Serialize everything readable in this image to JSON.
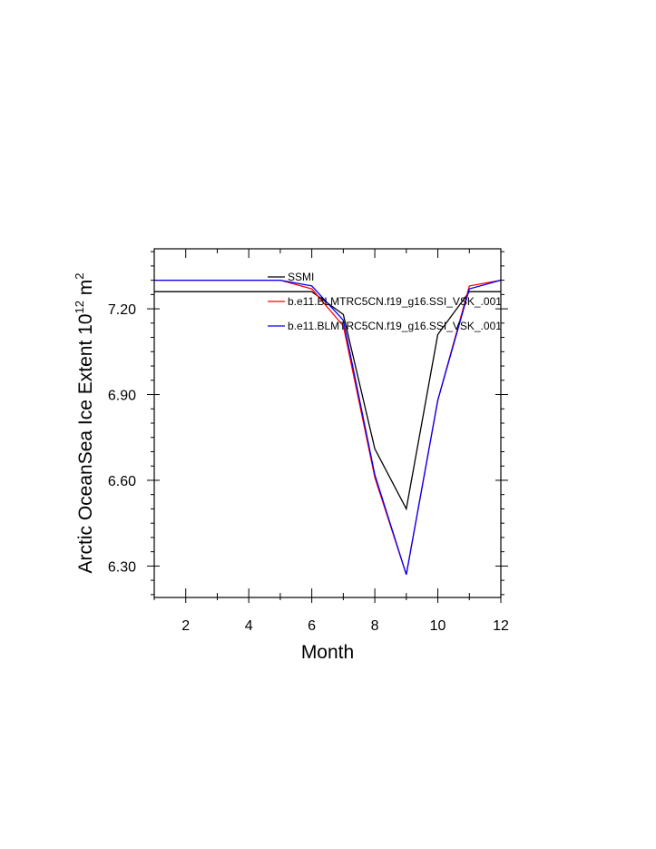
{
  "chart_data": {
    "type": "line",
    "title": "",
    "xlabel": "Month",
    "ylabel": {
      "main": "Arctic OceanSea Ice Extent 10",
      "superscript": "12",
      "unit": " m",
      "unit_superscript": "2"
    },
    "xlim": [
      1,
      12
    ],
    "ylim": [
      6.19,
      7.41
    ],
    "x_ticks": [
      2,
      4,
      6,
      8,
      10,
      12
    ],
    "y_ticks": [
      6.3,
      6.6,
      6.9,
      7.2
    ],
    "y_tick_labels": [
      "6.30",
      "6.60",
      "6.90",
      "7.20"
    ],
    "grid": false,
    "legend_position": "top-center",
    "x": [
      1,
      2,
      3,
      4,
      5,
      6,
      7,
      8,
      9,
      10,
      11,
      12
    ],
    "series": [
      {
        "name": "SSMI",
        "color": "#000000",
        "values": [
          7.26,
          7.26,
          7.26,
          7.26,
          7.26,
          7.26,
          7.18,
          6.71,
          6.5,
          7.11,
          7.26,
          7.26
        ]
      },
      {
        "name": "b.e11.BLMTRC5CN.f19_g16.SSI_VSK_.001",
        "color": "#ff0000",
        "values": [
          7.3,
          7.3,
          7.3,
          7.3,
          7.3,
          7.27,
          7.14,
          6.61,
          6.27,
          6.88,
          7.28,
          7.3
        ]
      },
      {
        "name": "b.e11.BLMTRC5CN.f19_g16.SSI_VSK_.001",
        "color": "#0000ff",
        "values": [
          7.3,
          7.3,
          7.3,
          7.3,
          7.3,
          7.28,
          7.16,
          6.62,
          6.27,
          6.88,
          7.27,
          7.3
        ]
      }
    ]
  }
}
